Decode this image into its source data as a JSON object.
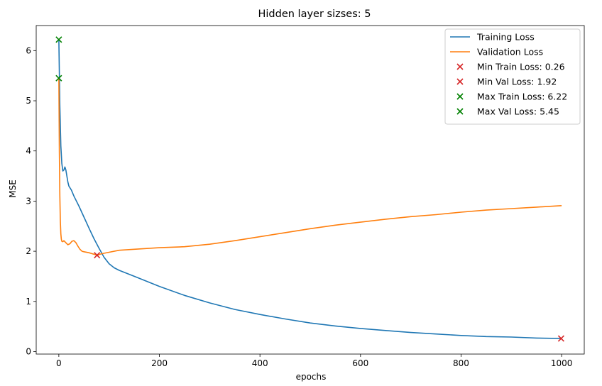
{
  "chart_data": {
    "type": "line",
    "title": "Hidden layer sizses: 5",
    "xlabel": "epochs",
    "ylabel": "MSE",
    "xlim": [
      -45,
      1045
    ],
    "ylim": [
      -0.05,
      6.5
    ],
    "xticks": [
      0,
      200,
      400,
      600,
      800,
      1000
    ],
    "yticks": [
      0,
      1,
      2,
      3,
      4,
      5,
      6
    ],
    "grid": false,
    "legend_position": "top-right",
    "series": [
      {
        "name": "Training Loss",
        "color": "#1f77b4",
        "x": [
          0,
          2,
          4,
          6,
          8,
          10,
          12,
          14,
          16,
          18,
          20,
          25,
          30,
          40,
          50,
          60,
          70,
          80,
          90,
          100,
          110,
          120,
          150,
          200,
          250,
          300,
          350,
          400,
          450,
          500,
          550,
          600,
          650,
          700,
          750,
          800,
          850,
          900,
          950,
          1000
        ],
        "y": [
          6.22,
          4.9,
          4.1,
          3.75,
          3.6,
          3.62,
          3.68,
          3.62,
          3.5,
          3.38,
          3.3,
          3.22,
          3.1,
          2.9,
          2.68,
          2.46,
          2.25,
          2.06,
          1.88,
          1.75,
          1.67,
          1.62,
          1.5,
          1.3,
          1.12,
          0.97,
          0.84,
          0.74,
          0.65,
          0.57,
          0.51,
          0.46,
          0.42,
          0.38,
          0.35,
          0.32,
          0.3,
          0.29,
          0.27,
          0.26
        ]
      },
      {
        "name": "Validation Loss",
        "color": "#ff7f0e",
        "x": [
          0,
          1,
          2,
          3,
          4,
          5,
          6,
          8,
          10,
          14,
          18,
          22,
          26,
          30,
          34,
          38,
          42,
          46,
          50,
          60,
          70,
          76,
          85,
          100,
          120,
          150,
          200,
          250,
          300,
          350,
          400,
          450,
          500,
          550,
          600,
          650,
          700,
          750,
          800,
          850,
          900,
          950,
          1000
        ],
        "y": [
          5.45,
          4.0,
          3.1,
          2.6,
          2.35,
          2.24,
          2.2,
          2.19,
          2.21,
          2.17,
          2.13,
          2.15,
          2.2,
          2.21,
          2.17,
          2.1,
          2.04,
          2.0,
          1.99,
          1.97,
          1.94,
          1.92,
          1.95,
          1.98,
          2.02,
          2.04,
          2.07,
          2.09,
          2.14,
          2.21,
          2.29,
          2.37,
          2.45,
          2.52,
          2.58,
          2.64,
          2.69,
          2.73,
          2.78,
          2.82,
          2.85,
          2.88,
          2.91
        ]
      }
    ],
    "markers": [
      {
        "name": "Min Train Loss: 0.26",
        "color": "#d62728",
        "x": 999,
        "y": 0.26
      },
      {
        "name": "Min Val Loss: 1.92",
        "color": "#d62728",
        "x": 76,
        "y": 1.92
      },
      {
        "name": "Max Train Loss: 6.22",
        "color": "#008000",
        "x": 0,
        "y": 6.22
      },
      {
        "name": "Max Val Loss: 5.45",
        "color": "#008000",
        "x": 0,
        "y": 5.45
      }
    ]
  }
}
